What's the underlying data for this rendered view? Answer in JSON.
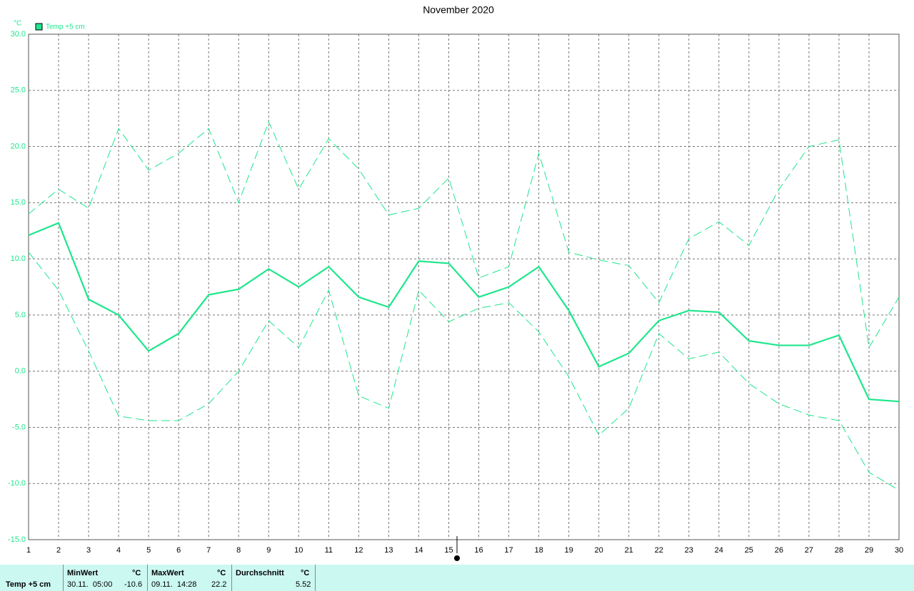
{
  "chart_data": {
    "type": "line",
    "title": "November 2020",
    "y_unit": "°C",
    "x": [
      1,
      2,
      3,
      4,
      5,
      6,
      7,
      8,
      9,
      10,
      11,
      12,
      13,
      14,
      15,
      16,
      17,
      18,
      19,
      20,
      21,
      22,
      23,
      24,
      25,
      26,
      27,
      28,
      29,
      30
    ],
    "xlim": [
      1,
      30
    ],
    "xticks": [
      1,
      2,
      3,
      4,
      5,
      6,
      7,
      8,
      9,
      10,
      11,
      12,
      13,
      14,
      15,
      16,
      17,
      18,
      19,
      20,
      21,
      22,
      23,
      24,
      25,
      26,
      27,
      28,
      29,
      30
    ],
    "ylim": [
      -15,
      30
    ],
    "yticks": [
      {
        "value": -15,
        "label": "-15.0"
      },
      {
        "value": -10,
        "label": "-10.0"
      },
      {
        "value": -5,
        "label": "-5.0"
      },
      {
        "value": 0,
        "label": "0.0"
      },
      {
        "value": 5,
        "label": "5.0"
      },
      {
        "value": 10,
        "label": "10.0"
      },
      {
        "value": 15,
        "label": "15.0"
      },
      {
        "value": 20,
        "label": "20.0"
      },
      {
        "value": 25,
        "label": "25.0"
      },
      {
        "value": 30,
        "label": "30.0"
      }
    ],
    "grid": true,
    "series": [
      {
        "name": "Temp +5 cm",
        "color": "#1ee68c",
        "dashed": false,
        "values": [
          12.1,
          13.2,
          6.4,
          5.0,
          1.8,
          3.35,
          6.8,
          7.3,
          9.1,
          7.5,
          9.3,
          6.6,
          5.7,
          9.8,
          9.6,
          6.6,
          7.5,
          9.3,
          5.4,
          0.4,
          1.6,
          4.5,
          5.4,
          5.25,
          2.7,
          2.3,
          2.3,
          3.2,
          -2.5,
          -2.7
        ]
      },
      {
        "color": "#1ee68c",
        "dashed": true,
        "values": [
          14.0,
          16.2,
          14.5,
          21.6,
          17.9,
          19.4,
          21.6,
          15.0,
          22.2,
          16.2,
          20.7,
          18.0,
          13.9,
          14.5,
          17.2,
          8.3,
          9.3,
          19.4,
          10.6,
          9.9,
          9.4,
          6.1,
          11.8,
          13.3,
          11.2,
          16.2,
          20.0,
          20.6,
          2.1,
          6.6
        ]
      },
      {
        "color": "#1ee68c",
        "dashed": true,
        "values": [
          10.6,
          7.2,
          1.8,
          -4.0,
          -4.4,
          -4.4,
          -2.9,
          0.0,
          4.5,
          2.1,
          7.2,
          -2.2,
          -3.3,
          7.2,
          4.4,
          5.6,
          6.1,
          3.5,
          -0.5,
          -5.7,
          -3.3,
          3.35,
          1.1,
          1.7,
          -1.1,
          -2.9,
          -3.9,
          -4.4,
          -9.0,
          -10.6
        ]
      }
    ]
  },
  "footer": {
    "label": "Temp +5 cm",
    "min": {
      "header": "MinWert",
      "unit": "°C",
      "time": "30.11.  05:00",
      "value": -10.6
    },
    "max": {
      "header": "MaxWert",
      "unit": "°C",
      "time": "09.11.  14:28",
      "value": 22.2
    },
    "avg": {
      "header": "Durchschnitt",
      "unit": "°C",
      "value": 5.52
    }
  }
}
